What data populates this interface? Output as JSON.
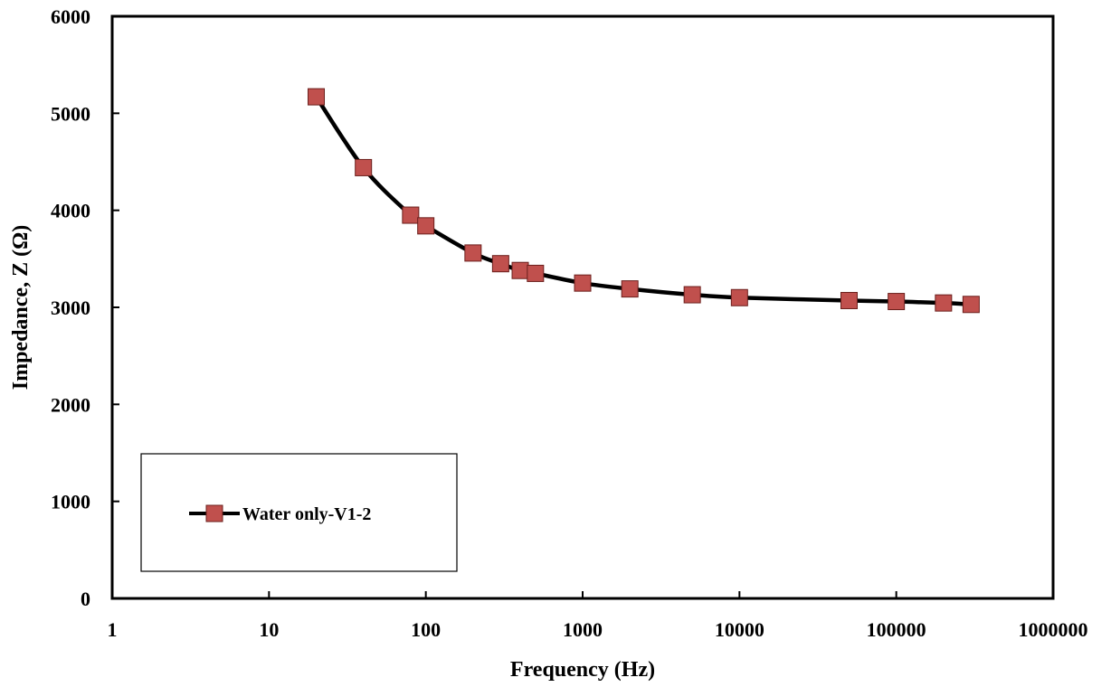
{
  "chart_data": {
    "type": "scatter",
    "title": "",
    "xlabel": "Frequency (Hz)",
    "ylabel": "Impedance, Z (Ω)",
    "xscale": "log",
    "xlim": [
      1,
      1000000
    ],
    "ylim": [
      0,
      6000
    ],
    "xticks": [
      "1",
      "10",
      "100",
      "1000",
      "10000",
      "100000",
      "1000000"
    ],
    "yticks": [
      "0",
      "1000",
      "2000",
      "3000",
      "4000",
      "5000",
      "6000"
    ],
    "grid": false,
    "legend_position": "bottom-left",
    "series": [
      {
        "name": "Water only-V1-2",
        "line_color": "#000000",
        "marker": "square",
        "marker_color": "#c0504d",
        "marker_edge": "#6b1f1c",
        "x": [
          20,
          40,
          80,
          100,
          200,
          300,
          400,
          500,
          1000,
          2000,
          5000,
          10000,
          50000,
          100000,
          200000,
          300000
        ],
        "y": [
          5170,
          4440,
          3950,
          3840,
          3560,
          3450,
          3380,
          3350,
          3250,
          3190,
          3130,
          3100,
          3070,
          3060,
          3045,
          3030
        ]
      }
    ]
  }
}
